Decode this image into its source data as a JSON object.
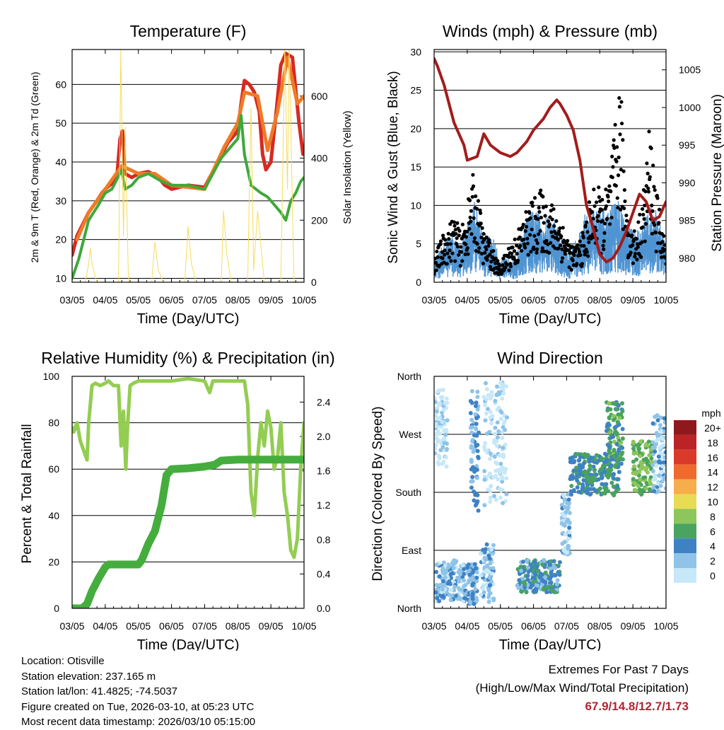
{
  "x_ticks": [
    "03/05",
    "04/05",
    "05/05",
    "06/05",
    "07/05",
    "08/05",
    "09/05",
    "10/05"
  ],
  "temperature": {
    "title": "Temperature (F)",
    "xlabel": "Time (Day/UTC)",
    "ylabel_left": "2m & 9m T (Red, Orange) & 2m Td (Green)",
    "ylabel_right": "Solar Insolation (Yellow)",
    "left_ticks": [
      "10",
      "20",
      "30",
      "40",
      "50",
      "60"
    ],
    "right_ticks": [
      "0",
      "200",
      "400",
      "600"
    ],
    "colors": {
      "t2": "#d62a22",
      "t9": "#f07a28",
      "td": "#3ea83a",
      "solar": "#f6dc5a"
    }
  },
  "winds": {
    "title": "Winds (mph) & Pressure (mb)",
    "xlabel": "Time (Day/UTC)",
    "ylabel_left": "Sonic Wind & Gust (Blue, Black)",
    "ylabel_right": "Station Pressure (Maroon)",
    "left_ticks": [
      "0",
      "5",
      "10",
      "15",
      "20",
      "25",
      "30"
    ],
    "right_ticks": [
      "980",
      "985",
      "990",
      "995",
      "1000",
      "1005"
    ],
    "colors": {
      "wind": "#4f94d3",
      "gust": "#000000",
      "pressure": "#a31c1c"
    }
  },
  "humidity": {
    "title": "Relative Humidity (%) & Precipitation (in)",
    "xlabel": "Time (Day/UTC)",
    "ylabel_left": "Percent & Total Rainfall",
    "left_ticks": [
      "0",
      "20",
      "40",
      "60",
      "80",
      "100"
    ],
    "right_ticks": [
      "0.0",
      "0.4",
      "0.8",
      "1.2",
      "1.6",
      "2.0",
      "2.4"
    ],
    "colors": {
      "rh": "#93cd52",
      "precip": "#45ad3e"
    }
  },
  "direction": {
    "title": "Wind Direction",
    "xlabel": "Time (Day/UTC)",
    "ylabel_left": "Direction (Colored By Speed)",
    "dir_ticks": [
      "North",
      "East",
      "South",
      "West",
      "North"
    ],
    "colorbar_title": "mph",
    "colorbar_labels": [
      "0",
      "2",
      "4",
      "6",
      "8",
      "10",
      "12",
      "14",
      "16",
      "18",
      "20+"
    ],
    "colorbar_colors": [
      "#c6e8f8",
      "#8fc3e8",
      "#3f82c4",
      "#4aa35e",
      "#8dc65a",
      "#e8dc55",
      "#f7ad4c",
      "#ef6a2c",
      "#d93a2a",
      "#bb2326",
      "#8f181c"
    ]
  },
  "chart_data": [
    {
      "type": "line",
      "title": "Temperature (F)",
      "xlabel": "Time (Day/UTC)",
      "ylabel": "2m & 9m T (Red, Orange) & 2m Td (Green)",
      "y2label": "Solar Insolation (Yellow)",
      "ylim": [
        9,
        69
      ],
      "y2lim": [
        0,
        750
      ],
      "xlim": [
        0,
        7
      ],
      "series": [
        {
          "name": "2m T",
          "axis": "left",
          "color": "#d62a22",
          "x": [
            0,
            0.15,
            0.5,
            0.75,
            0.9,
            1.0,
            1.2,
            1.35,
            1.45,
            1.52,
            1.6,
            1.8,
            2.0,
            2.3,
            2.6,
            2.8,
            3.0,
            3.5,
            4.0,
            4.4,
            4.7,
            5.0,
            5.1,
            5.2,
            5.35,
            5.5,
            5.65,
            5.75,
            5.85,
            6.0,
            6.15,
            6.3,
            6.45,
            6.65,
            6.85,
            6.97,
            7.0
          ],
          "y": [
            16,
            21,
            27,
            30,
            32,
            33,
            34.5,
            36,
            46,
            48,
            37,
            36,
            37,
            37.5,
            36,
            34,
            33,
            34,
            33.5,
            40,
            45,
            48,
            55,
            61,
            60,
            58,
            53,
            42,
            38,
            40,
            52,
            65,
            68,
            67,
            50,
            42,
            43
          ]
        },
        {
          "name": "9m T",
          "axis": "left",
          "color": "#f07a28",
          "x": [
            0.15,
            0.5,
            1.0,
            1.5,
            2.0,
            2.5,
            3.0,
            4.0,
            4.6,
            5.0,
            5.2,
            5.6,
            5.9,
            6.2,
            6.5,
            6.8,
            7.0
          ],
          "y": [
            20,
            27,
            33,
            39,
            37,
            37,
            34,
            33,
            44,
            50,
            58,
            57,
            43,
            53,
            67,
            55,
            57
          ]
        },
        {
          "name": "2m Td",
          "axis": "left",
          "color": "#3ea83a",
          "x": [
            0,
            0.2,
            0.5,
            0.8,
            1.0,
            1.2,
            1.5,
            1.6,
            1.8,
            2.0,
            2.3,
            2.7,
            3.0,
            3.5,
            4.0,
            4.5,
            4.8,
            5.0,
            5.1,
            5.2,
            5.4,
            5.55,
            5.7,
            5.9,
            6.1,
            6.3,
            6.45,
            6.6,
            6.75,
            6.9,
            7.0
          ],
          "y": [
            10,
            15,
            25,
            29,
            32,
            33,
            38,
            33,
            34,
            36,
            37,
            35,
            34,
            34,
            33,
            41,
            44,
            46,
            52,
            42,
            34,
            33,
            32,
            31,
            29,
            27,
            25,
            30,
            32,
            35,
            36
          ]
        },
        {
          "name": "Solar Insolation",
          "axis": "right",
          "color": "#f6dc5a",
          "x": [
            0,
            0.4,
            0.5,
            0.55,
            0.6,
            0.75,
            1.4,
            1.47,
            1.55,
            1.6,
            1.7,
            2.4,
            2.5,
            2.6,
            2.75,
            3.4,
            3.5,
            3.6,
            3.75,
            4.5,
            4.57,
            4.67,
            4.8,
            5.3,
            5.4,
            5.48,
            5.6,
            5.8,
            6.3,
            6.42,
            6.5,
            6.55,
            6.7,
            7.0
          ],
          "y": [
            0,
            0,
            60,
            110,
            60,
            0,
            0,
            750,
            150,
            500,
            0,
            0,
            130,
            40,
            0,
            0,
            180,
            60,
            0,
            0,
            230,
            90,
            0,
            0,
            560,
            40,
            230,
            0,
            0,
            760,
            300,
            760,
            0,
            0
          ]
        }
      ]
    },
    {
      "type": "line",
      "title": "Winds (mph) & Pressure (mb)",
      "xlabel": "Time (Day/UTC)",
      "ylabel": "Sonic Wind & Gust (Blue, Black)",
      "y2label": "Station Pressure (Maroon)",
      "ylim": [
        0,
        30.3
      ],
      "y2lim": [
        976.8,
        1007.7
      ],
      "xlim": [
        0,
        7
      ],
      "series": [
        {
          "name": "Sonic Wind",
          "axis": "left",
          "color": "#4f94d3",
          "x": [
            0,
            0.5,
            0.8,
            1.0,
            1.2,
            1.5,
            1.8,
            2.0,
            2.5,
            2.8,
            3.0,
            3.3,
            3.6,
            3.8,
            4.0,
            4.3,
            4.6,
            4.8,
            5.0,
            5.3,
            5.5,
            5.6,
            5.8,
            6.0,
            6.3,
            6.5,
            6.7,
            6.9,
            7.0
          ],
          "y": [
            1.5,
            3.5,
            2.5,
            4,
            6,
            3.5,
            3,
            1.5,
            2,
            4.5,
            5,
            4.5,
            4.5,
            3.5,
            2,
            3,
            5,
            5,
            5,
            5,
            6,
            5.5,
            4.5,
            3.5,
            4,
            5.5,
            5,
            3.5,
            3
          ]
        },
        {
          "name": "Gust",
          "axis": "left",
          "color": "#000000",
          "marker": "dot",
          "x": [
            0,
            0.3,
            0.6,
            0.8,
            1.0,
            1.15,
            1.3,
            1.5,
            1.7,
            1.85,
            2.0,
            2.2,
            2.5,
            2.8,
            3.0,
            3.2,
            3.4,
            3.7,
            4.0,
            4.2,
            4.5,
            4.7,
            4.9,
            5.1,
            5.25,
            5.4,
            5.55,
            5.62,
            5.7,
            5.85,
            6.0,
            6.2,
            6.35,
            6.5,
            6.6,
            6.7,
            6.85,
            7.0
          ],
          "y": [
            3,
            6,
            8,
            6,
            9,
            13,
            11,
            6,
            5,
            3,
            2,
            4,
            6,
            9,
            10,
            11,
            10,
            9,
            6,
            4,
            6,
            10,
            12,
            10,
            12,
            16,
            23,
            25,
            17,
            9,
            6,
            8,
            12,
            19,
            16,
            11,
            8,
            4
          ]
        },
        {
          "name": "Station Pressure",
          "axis": "right",
          "color": "#a31c1c",
          "x": [
            0,
            0.1,
            0.3,
            0.6,
            0.9,
            1.0,
            1.3,
            1.5,
            1.7,
            2.0,
            2.3,
            2.5,
            2.8,
            3.0,
            3.3,
            3.5,
            3.7,
            3.8,
            4.0,
            4.2,
            4.4,
            4.6,
            4.8,
            5.0,
            5.2,
            5.4,
            5.6,
            5.8,
            6.0,
            6.2,
            6.4,
            6.6,
            6.8,
            7.0
          ],
          "y": [
            1006.5,
            1005.5,
            1003,
            998,
            995,
            993,
            993.5,
            996.5,
            995,
            994,
            993.5,
            994,
            995.5,
            997,
            998.5,
            1000,
            1001,
            1000.5,
            999,
            997,
            993,
            987,
            984,
            980.5,
            979.5,
            980,
            981.5,
            983.5,
            986,
            988.5,
            987.5,
            985,
            985.5,
            987.5
          ]
        }
      ]
    },
    {
      "type": "line",
      "title": "Relative Humidity (%) & Precipitation (in)",
      "xlabel": "Time (Day/UTC)",
      "ylabel": "Percent & Total Rainfall",
      "ylim": [
        0,
        100
      ],
      "y2lim": [
        0,
        2.7
      ],
      "xlim": [
        0,
        7
      ],
      "series": [
        {
          "name": "Relative Humidity",
          "axis": "left",
          "color": "#93cd52",
          "x": [
            0,
            0.05,
            0.15,
            0.25,
            0.45,
            0.5,
            0.6,
            0.7,
            0.85,
            1.0,
            1.1,
            1.25,
            1.4,
            1.48,
            1.55,
            1.62,
            1.68,
            1.75,
            1.85,
            2.0,
            2.5,
            3.0,
            3.5,
            4.0,
            4.15,
            4.25,
            4.35,
            4.5,
            5.0,
            5.2,
            5.3,
            5.4,
            5.5,
            5.6,
            5.7,
            5.8,
            5.9,
            6.0,
            6.1,
            6.2,
            6.3,
            6.4,
            6.5,
            6.6,
            6.7,
            6.8,
            6.9,
            7.0
          ],
          "y": [
            78,
            76,
            80,
            72,
            64,
            80,
            96,
            97,
            96,
            97,
            98,
            96,
            96,
            70,
            85,
            60,
            80,
            96,
            97,
            98,
            98,
            98,
            99,
            98,
            93,
            98,
            98,
            98,
            98,
            98,
            88,
            50,
            40,
            65,
            80,
            70,
            85,
            78,
            60,
            65,
            80,
            50,
            40,
            25,
            22,
            30,
            60,
            80
          ]
        },
        {
          "name": "Total Precipitation",
          "axis": "right",
          "color": "#45ad3e",
          "x": [
            0,
            0.3,
            0.45,
            0.6,
            0.8,
            1.0,
            1.1,
            2.0,
            2.1,
            2.3,
            2.5,
            2.7,
            2.85,
            3.0,
            3.5,
            4.0,
            4.3,
            4.5,
            5.0,
            5.5,
            6.0,
            6.5,
            7.0
          ],
          "y": [
            0,
            0,
            0.05,
            0.2,
            0.35,
            0.48,
            0.51,
            0.51,
            0.56,
            0.75,
            0.9,
            1.2,
            1.55,
            1.62,
            1.63,
            1.65,
            1.67,
            1.72,
            1.73,
            1.73,
            1.73,
            1.73,
            1.73
          ]
        }
      ]
    },
    {
      "type": "scatter",
      "title": "Wind Direction",
      "xlabel": "Time (Day/UTC)",
      "ylabel": "Direction (Colored By Speed)",
      "ylim": [
        0,
        360
      ],
      "xlim": [
        0,
        7
      ],
      "y_tick_values": [
        0,
        90,
        180,
        270,
        360
      ],
      "colorbar": {
        "title": "mph",
        "levels": [
          0,
          2,
          4,
          6,
          8,
          10,
          12,
          14,
          16,
          18,
          20
        ]
      },
      "clusters": [
        {
          "x0": 0.05,
          "x1": 0.95,
          "d0": 10,
          "d1": 75,
          "speed": 3
        },
        {
          "x0": 0.0,
          "x1": 0.4,
          "d0": 220,
          "d1": 340,
          "speed": 1
        },
        {
          "x0": 1.1,
          "x1": 1.35,
          "d0": 150,
          "d1": 340,
          "speed": 4
        },
        {
          "x0": 1.0,
          "x1": 1.3,
          "d0": 5,
          "d1": 70,
          "speed": 4
        },
        {
          "x0": 1.5,
          "x1": 2.2,
          "d0": 160,
          "d1": 355,
          "speed": 1
        },
        {
          "x0": 1.4,
          "x1": 1.8,
          "d0": 10,
          "d1": 100,
          "speed": 3
        },
        {
          "x0": 2.5,
          "x1": 3.8,
          "d0": 25,
          "d1": 75,
          "speed": 5
        },
        {
          "x0": 3.85,
          "x1": 4.1,
          "d0": 80,
          "d1": 180,
          "speed": 3
        },
        {
          "x0": 4.1,
          "x1": 5.6,
          "d0": 175,
          "d1": 240,
          "speed": 6
        },
        {
          "x0": 5.2,
          "x1": 5.7,
          "d0": 220,
          "d1": 320,
          "speed": 7
        },
        {
          "x0": 6.0,
          "x1": 6.6,
          "d0": 175,
          "d1": 260,
          "speed": 8
        },
        {
          "x0": 6.6,
          "x1": 7.0,
          "d0": 180,
          "d1": 300,
          "speed": 3
        }
      ]
    }
  ],
  "footer": {
    "location": "Location: Otisville",
    "elevation": "Station elevation: 237.165 m",
    "latlon": "Station lat/lon: 41.4825; -74.5037",
    "created": "Figure created on Tue, 2026-03-10, at 05:23 UTC",
    "recent": "Most recent data timestamp: 2026/03/10 05:15:00",
    "extremes_title": "Extremes For Past 7 Days",
    "extremes_subtitle": "(High/Low/Max Wind/Total Precipitation)",
    "extremes_values": "67.9/14.8/12.7/1.73"
  }
}
